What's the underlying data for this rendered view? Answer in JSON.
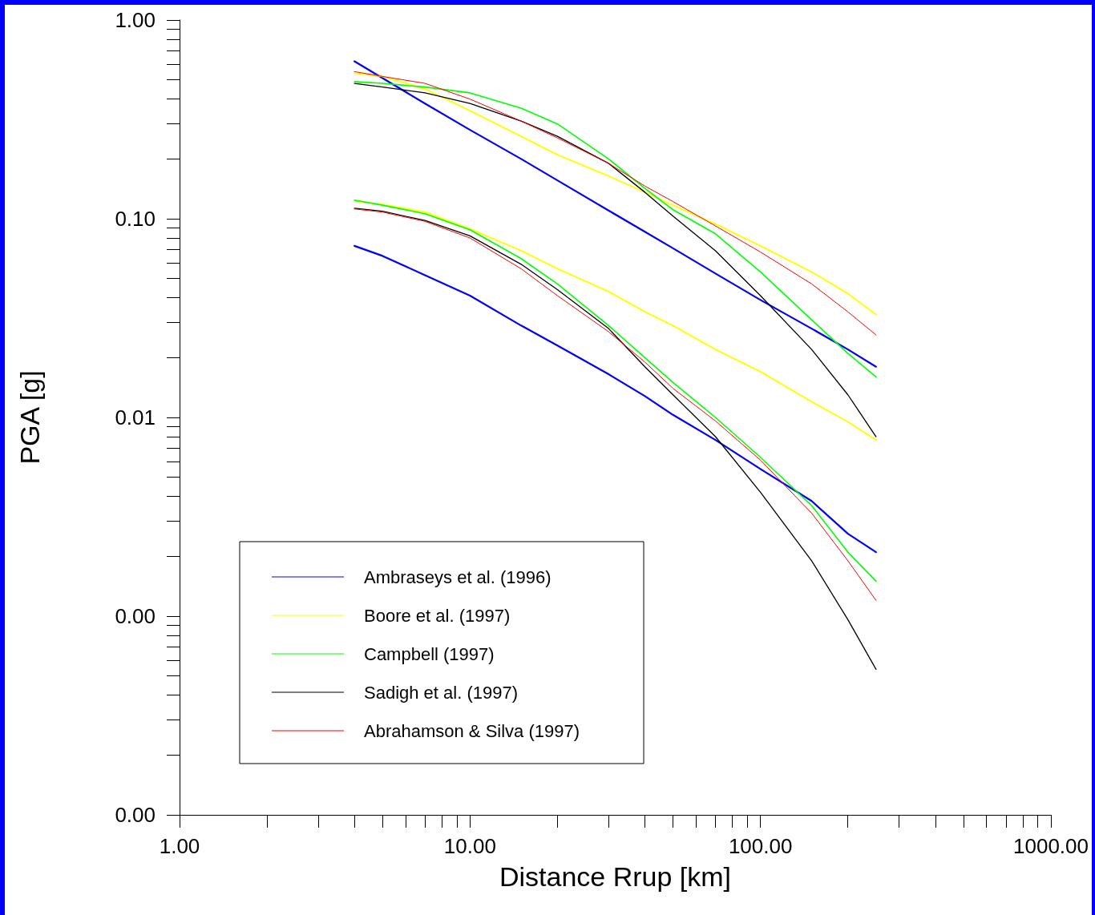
{
  "chart_data": {
    "type": "line",
    "xlabel": "Distance Rrup [km]",
    "ylabel": "PGA [g]",
    "log": "xy",
    "grid": false,
    "legend": "bottom left",
    "marker": "none",
    "line_style": "solid",
    "xlim": [
      1,
      1000
    ],
    "ylim": [
      0.0001,
      1
    ],
    "xticks": [
      {
        "value": 1,
        "label": "1.00"
      },
      {
        "value": 2,
        "label": null
      },
      {
        "value": 3,
        "label": null
      },
      {
        "value": 4,
        "label": null
      },
      {
        "value": 5,
        "label": null
      },
      {
        "value": 6,
        "label": null
      },
      {
        "value": 7,
        "label": null
      },
      {
        "value": 8,
        "label": null
      },
      {
        "value": 9,
        "label": null
      },
      {
        "value": 10,
        "label": "10.00"
      },
      {
        "value": 20,
        "label": null
      },
      {
        "value": 30,
        "label": null
      },
      {
        "value": 40,
        "label": null
      },
      {
        "value": 50,
        "label": null
      },
      {
        "value": 60,
        "label": null
      },
      {
        "value": 70,
        "label": null
      },
      {
        "value": 80,
        "label": null
      },
      {
        "value": 90,
        "label": null
      },
      {
        "value": 100,
        "label": "100.00"
      },
      {
        "value": 200,
        "label": null
      },
      {
        "value": 300,
        "label": null
      },
      {
        "value": 400,
        "label": null
      },
      {
        "value": 500,
        "label": null
      },
      {
        "value": 600,
        "label": null
      },
      {
        "value": 700,
        "label": null
      },
      {
        "value": 800,
        "label": null
      },
      {
        "value": 900,
        "label": null
      },
      {
        "value": 1000,
        "label": "1000.00"
      }
    ],
    "yticks": [
      {
        "value": 0.0001,
        "label": "0.00"
      },
      {
        "value": 0.0002,
        "label": null
      },
      {
        "value": 0.0003,
        "label": null
      },
      {
        "value": 0.0004,
        "label": null
      },
      {
        "value": 0.0005,
        "label": null
      },
      {
        "value": 0.0006,
        "label": null
      },
      {
        "value": 0.0007,
        "label": null
      },
      {
        "value": 0.0008,
        "label": null
      },
      {
        "value": 0.0009,
        "label": null
      },
      {
        "value": 0.001,
        "label": "0.00"
      },
      {
        "value": 0.002,
        "label": null
      },
      {
        "value": 0.003,
        "label": null
      },
      {
        "value": 0.004,
        "label": null
      },
      {
        "value": 0.005,
        "label": null
      },
      {
        "value": 0.006,
        "label": null
      },
      {
        "value": 0.007,
        "label": null
      },
      {
        "value": 0.008,
        "label": null
      },
      {
        "value": 0.009,
        "label": null
      },
      {
        "value": 0.01,
        "label": "0.01"
      },
      {
        "value": 0.02,
        "label": null
      },
      {
        "value": 0.03,
        "label": null
      },
      {
        "value": 0.04,
        "label": null
      },
      {
        "value": 0.05,
        "label": null
      },
      {
        "value": 0.06,
        "label": null
      },
      {
        "value": 0.07,
        "label": null
      },
      {
        "value": 0.08,
        "label": null
      },
      {
        "value": 0.09,
        "label": null
      },
      {
        "value": 0.1,
        "label": "0.10"
      },
      {
        "value": 0.2,
        "label": null
      },
      {
        "value": 0.3,
        "label": null
      },
      {
        "value": 0.4,
        "label": null
      },
      {
        "value": 0.5,
        "label": null
      },
      {
        "value": 0.6,
        "label": null
      },
      {
        "value": 0.7,
        "label": null
      },
      {
        "value": 0.8,
        "label": null
      },
      {
        "value": 0.9,
        "label": null
      },
      {
        "value": 1,
        "label": "1.00"
      }
    ],
    "x": [
      4,
      5,
      7,
      10,
      15,
      20,
      30,
      40,
      50,
      70,
      100,
      150,
      200,
      250
    ],
    "series": [
      {
        "name": "Ambraseys et al. (1996)",
        "color": "#0000ff",
        "values": [
          0.62,
          0.51,
          0.38,
          0.28,
          0.2,
          0.156,
          0.11,
          0.086,
          0.071,
          0.053,
          0.039,
          0.028,
          0.022,
          0.018
        ]
      },
      {
        "name": "Boore et al. (1997)",
        "color": "#ffff00",
        "values": [
          0.54,
          0.52,
          0.45,
          0.35,
          0.26,
          0.21,
          0.164,
          0.136,
          0.117,
          0.094,
          0.073,
          0.054,
          0.042,
          0.033
        ]
      },
      {
        "name": "Campbell (1997)",
        "color": "#00ff00",
        "values": [
          0.49,
          0.48,
          0.46,
          0.43,
          0.36,
          0.3,
          0.2,
          0.142,
          0.111,
          0.084,
          0.054,
          0.031,
          0.021,
          0.016
        ]
      },
      {
        "name": "Sadigh et al. (1997)",
        "color": "#000000",
        "values": [
          0.48,
          0.46,
          0.43,
          0.38,
          0.31,
          0.26,
          0.19,
          0.136,
          0.103,
          0.069,
          0.041,
          0.022,
          0.013,
          0.008
        ]
      },
      {
        "name": "Abrahamson & Silva (1997)",
        "color": "#ff0000",
        "values": [
          0.55,
          0.52,
          0.48,
          0.4,
          0.31,
          0.255,
          0.19,
          0.146,
          0.122,
          0.092,
          0.068,
          0.047,
          0.034,
          0.026
        ]
      },
      {
        "color": "#0000ff",
        "values": [
          0.073,
          0.065,
          0.052,
          0.041,
          0.029,
          0.023,
          0.0165,
          0.0128,
          0.0103,
          0.0077,
          0.0055,
          0.0038,
          0.0026,
          0.0021
        ]
      },
      {
        "color": "#ffff00",
        "values": [
          0.123,
          0.118,
          0.108,
          0.089,
          0.069,
          0.056,
          0.043,
          0.034,
          0.029,
          0.022,
          0.017,
          0.012,
          0.0095,
          0.0077
        ]
      },
      {
        "color": "#00ff00",
        "values": [
          0.124,
          0.117,
          0.106,
          0.088,
          0.063,
          0.047,
          0.029,
          0.02,
          0.015,
          0.01,
          0.0063,
          0.0036,
          0.0021,
          0.0015
        ]
      },
      {
        "color": "#000000",
        "values": [
          0.113,
          0.109,
          0.098,
          0.082,
          0.059,
          0.044,
          0.028,
          0.018,
          0.013,
          0.008,
          0.0042,
          0.0019,
          0.00096,
          0.00054
        ]
      },
      {
        "color": "#ff0000",
        "values": [
          0.112,
          0.108,
          0.097,
          0.08,
          0.056,
          0.041,
          0.027,
          0.019,
          0.014,
          0.0096,
          0.0061,
          0.0033,
          0.0019,
          0.0012
        ]
      }
    ]
  }
}
